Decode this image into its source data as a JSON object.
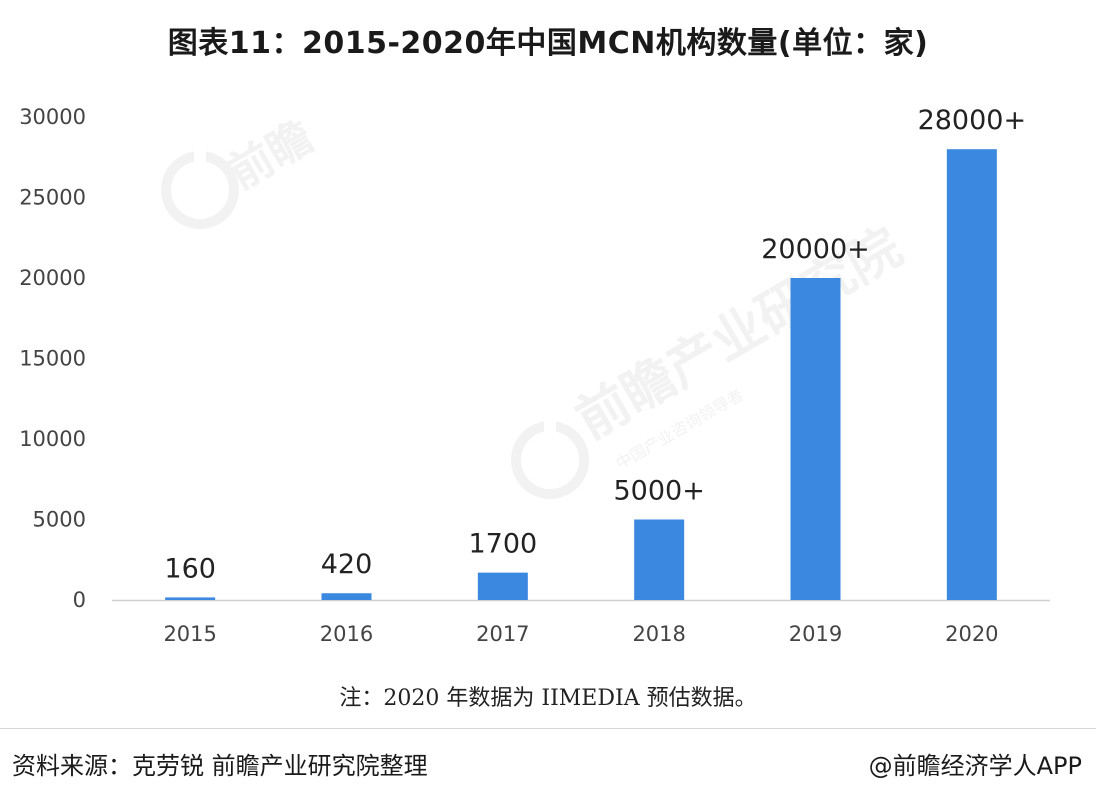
{
  "title": "图表11：2015-2020年中国MCN机构数量(单位：家)",
  "note": "注：2020 年数据为 IIMEDIA 预估数据。",
  "source": "资料来源：克劳锐 前瞻产业研究院整理",
  "credit": "@前瞻经济学人APP",
  "watermark": {
    "brand": "前瞻",
    "text": "前瞻产业研究院",
    "subtext": "中国产业咨询领导者"
  },
  "chart_data": {
    "type": "bar",
    "categories": [
      "2015",
      "2016",
      "2017",
      "2018",
      "2019",
      "2020"
    ],
    "values": [
      160,
      420,
      1700,
      5000,
      20000,
      28000
    ],
    "data_labels": [
      "160",
      "420",
      "1700",
      "5000+",
      "20000+",
      "28000+"
    ],
    "yticks": [
      "0",
      "5000",
      "10000",
      "15000",
      "20000",
      "25000",
      "30000"
    ],
    "ylim": [
      0,
      30000
    ],
    "grid": false,
    "bar_color": "#3b88e0",
    "axis_color": "#d0d0d0"
  }
}
